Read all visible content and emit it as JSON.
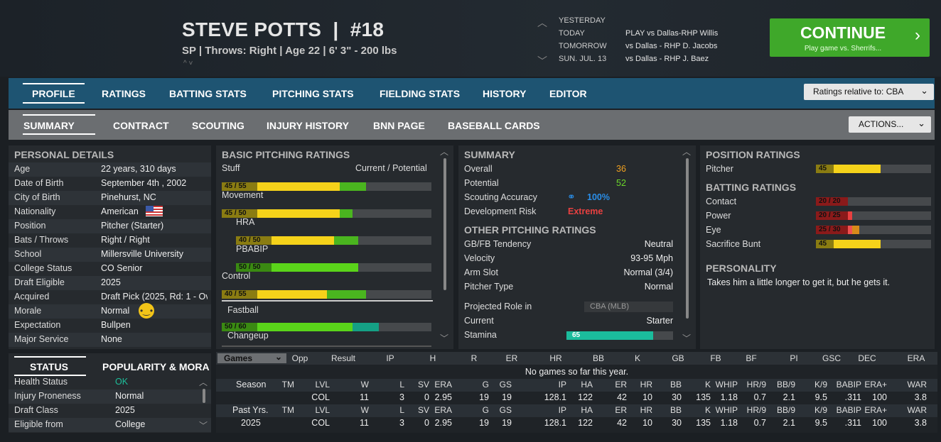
{
  "player": {
    "name": "STEVE POTTS",
    "number": "#18",
    "info": "SP | Throws: Right  |  Age 22  |  6' 3\"  - 200 lbs"
  },
  "schedule": [
    {
      "label": "YESTERDAY",
      "game": ""
    },
    {
      "label": "TODAY",
      "game": "PLAY vs Dallas-RHP Willis"
    },
    {
      "label": "TOMORROW",
      "game": "vs Dallas - RHP D. Jacobs"
    },
    {
      "label": "SUN. JUL. 13",
      "game": "vs Dallas - RHP J. Baez"
    }
  ],
  "continue": {
    "label": "CONTINUE",
    "sub": "Play game vs. Sherrifs..."
  },
  "main_tabs": [
    "PROFILE",
    "RATINGS",
    "BATTING STATS",
    "PITCHING STATS",
    "FIELDING STATS",
    "HISTORY",
    "EDITOR"
  ],
  "ratings_relative": "Ratings relative to: CBA",
  "sub_tabs": [
    "SUMMARY",
    "CONTRACT",
    "SCOUTING",
    "INJURY HISTORY",
    "BNN PAGE",
    "BASEBALL CARDS"
  ],
  "actions": "ACTIONS...",
  "personal": {
    "title": "PERSONAL DETAILS",
    "rows": [
      {
        "label": "Age",
        "value": "22 years, 310 days"
      },
      {
        "label": "Date of Birth",
        "value": "September 4th , 2002"
      },
      {
        "label": "City of Birth",
        "value": "Pinehurst, NC"
      },
      {
        "label": "Nationality",
        "value": "American"
      },
      {
        "label": "Position",
        "value": "Pitcher (Starter)"
      },
      {
        "label": "Bats / Throws",
        "value": "Right / Right"
      },
      {
        "label": "School",
        "value": "Millersville University"
      },
      {
        "label": "College Status",
        "value": "CO Senior"
      },
      {
        "label": "Draft Eligible",
        "value": "2025"
      },
      {
        "label": "Acquired",
        "value": "Draft Pick (2025, Rd: 1 - Ov"
      },
      {
        "label": "Morale",
        "value": "Normal"
      },
      {
        "label": "Expectation",
        "value": "Bullpen"
      },
      {
        "label": "Major Service",
        "value": "None"
      }
    ]
  },
  "status": {
    "tabs": [
      "STATUS",
      "POPULARITY & MORA"
    ],
    "rows": [
      {
        "label": "Health Status",
        "value": "OK"
      },
      {
        "label": "Injury Proneness",
        "value": "Normal"
      },
      {
        "label": "Draft Class",
        "value": "2025"
      },
      {
        "label": "Eligible from",
        "value": "College"
      }
    ]
  },
  "pitching": {
    "title": "BASIC PITCHING RATINGS",
    "header_left": "Stuff",
    "header_right": "Current / Potential",
    "ratings": [
      {
        "label": "Stuff",
        "text": "45 / 55",
        "current": 45,
        "potential": 55
      },
      {
        "label": "Movement",
        "text": "45 / 50",
        "current": 45,
        "potential": 50
      },
      {
        "label": "HRA",
        "text": "40 / 50",
        "current": 40,
        "potential": 50
      },
      {
        "label": "PBABIP",
        "text": "50 / 50",
        "current": 50,
        "potential": 50
      },
      {
        "label": "Control",
        "text": "40 / 55",
        "current": 40,
        "potential": 55
      },
      {
        "label": "Fastball",
        "text": "50 / 60",
        "current": 50,
        "potential": 60
      },
      {
        "label": "Changeup",
        "text": "",
        "current": 0,
        "potential": 0
      }
    ]
  },
  "summary": {
    "title": "SUMMARY",
    "overall_label": "Overall",
    "overall": "36",
    "potential_label": "Potential",
    "potential": "52",
    "accuracy_label": "Scouting Accuracy",
    "accuracy": "100%",
    "risk_label": "Development Risk",
    "risk": "Extreme",
    "other_title": "OTHER PITCHING RATINGS",
    "other": [
      {
        "label": "GB/FB Tendency",
        "value": "Neutral"
      },
      {
        "label": "Velocity",
        "value": "93-95 Mph"
      },
      {
        "label": "Arm Slot",
        "value": "Normal (3/4)"
      },
      {
        "label": "Pitcher Type",
        "value": "Normal"
      }
    ],
    "projected_label": "Projected Role in",
    "projected_select": "CBA (MLB)",
    "current_label": "Current",
    "current_value": "Starter",
    "stamina_label": "Stamina",
    "stamina": 65
  },
  "position": {
    "title": "POSITION RATINGS",
    "rows": [
      {
        "label": "Pitcher",
        "text": "45",
        "value": 45
      }
    ],
    "batting_title": "BATTING RATINGS",
    "batting": [
      {
        "label": "Contact",
        "text": "20 / 20",
        "current": 20,
        "potential": 20
      },
      {
        "label": "Power",
        "text": "20 / 25",
        "current": 20,
        "potential": 25
      },
      {
        "label": "Eye",
        "text": "25 / 30",
        "current": 25,
        "potential": 30
      },
      {
        "label": "Sacrifice Bunt",
        "text": "45",
        "current": 45,
        "potential": 45
      }
    ],
    "personality_title": "PERSONALITY",
    "personality": "Takes him a little longer to get it, but he gets it."
  },
  "games": {
    "select": "Games",
    "headers": [
      "Opp",
      "Result",
      "IP",
      "H",
      "R",
      "ER",
      "HR",
      "BB",
      "K",
      "GB",
      "FB",
      "BF",
      "PI",
      "GSC",
      "DEC",
      "ERA"
    ],
    "empty": "No games so far this year.",
    "stat_headers": [
      "TM",
      "LVL",
      "W",
      "L",
      "SV",
      "ERA",
      "G",
      "GS",
      "IP",
      "HA",
      "ER",
      "HR",
      "BB",
      "K",
      "WHIP",
      "HR/9",
      "BB/9",
      "K/9",
      "BABIP",
      "ERA+",
      "WAR"
    ],
    "season_label": "Season",
    "season_row": [
      "",
      "COL",
      "11",
      "3",
      "0",
      "2.95",
      "19",
      "19",
      "128.1",
      "122",
      "42",
      "10",
      "30",
      "135",
      "1.18",
      "0.7",
      "2.1",
      "9.5",
      ".311",
      "100",
      "3.8"
    ],
    "past_label": "Past Yrs.",
    "past_year": "2025",
    "past_row": [
      "",
      "COL",
      "11",
      "3",
      "0",
      "2.95",
      "19",
      "19",
      "128.1",
      "122",
      "42",
      "10",
      "30",
      "135",
      "1.18",
      "0.7",
      "2.1",
      "9.5",
      ".311",
      "100",
      "3.8"
    ]
  },
  "colors": {
    "bar_current": "#f5d21a",
    "bar_potential": "#4ab51f",
    "bar_green": "#5ad41a",
    "accent_blue": "#1e5472",
    "continue_green": "#3fa82a",
    "red": "#e84040",
    "orange": "#f0a020"
  }
}
